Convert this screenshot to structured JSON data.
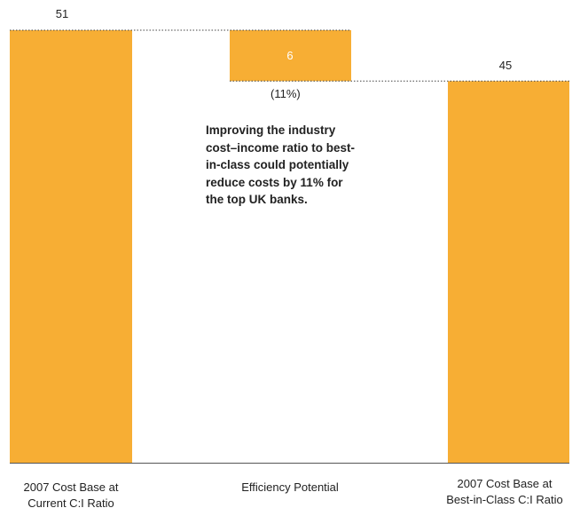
{
  "chart_data": {
    "type": "bar",
    "subtype": "waterfall",
    "categories": [
      [
        "2007 Cost Base at",
        "Current C:I Ratio"
      ],
      [
        "Efficiency Potential"
      ],
      [
        "2007 Cost Base at",
        "Best-in-Class C:I Ratio"
      ]
    ],
    "values": [
      51,
      -6,
      45
    ],
    "bar_labels": [
      "51",
      "6",
      "45"
    ],
    "change_label": "(11%)",
    "annotation": [
      "Improving the industry",
      "cost–income ratio to best-",
      "in-class could potentially",
      "reduce costs by 11% for",
      "the top UK banks."
    ],
    "ylim": [
      0,
      51
    ],
    "grid": false,
    "legend": "none",
    "colors": {
      "bar": "#F7AE34",
      "value_text_on_bar": "#ffffff",
      "axis": "#555555",
      "dotted": "#444444"
    }
  }
}
